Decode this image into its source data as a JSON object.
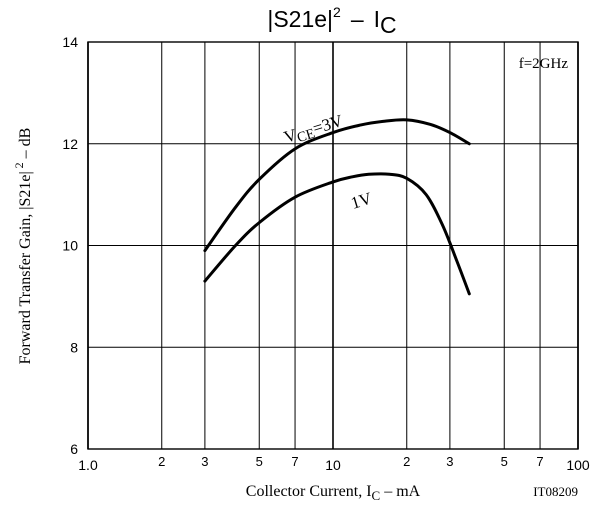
{
  "chart_data": {
    "type": "line",
    "title": "|S21e|² – IC",
    "title_parts": {
      "main": "S21e",
      "sup": "2",
      "dash": "–",
      "i": "I",
      "sub": "C"
    },
    "xlabel": "Collector Current, IC – mA",
    "xlabel_parts": {
      "pre": "Collector Current, I",
      "sub": "C",
      "post": " – mA"
    },
    "ylabel": "Forward Transfer Gain, |S21e|² – dB",
    "ylabel_parts": {
      "pre": "Forward Transfer Gain, ",
      "main": "S21e",
      "sup": "2",
      "post": " – dB"
    },
    "x_scale": "log",
    "xlim": [
      1,
      100
    ],
    "ylim": [
      6,
      14
    ],
    "grid": true,
    "annotations": {
      "condition": "f=2GHz",
      "code": "IT08209"
    },
    "x_major_ticks": [
      {
        "value": 1,
        "label": "1.0"
      },
      {
        "value": 10,
        "label": "10"
      },
      {
        "value": 100,
        "label": "100"
      }
    ],
    "x_minor_ticks": [
      {
        "value": 2,
        "label": "2"
      },
      {
        "value": 3,
        "label": "3"
      },
      {
        "value": 5,
        "label": "5"
      },
      {
        "value": 7,
        "label": "7"
      },
      {
        "value": 20,
        "label": "2"
      },
      {
        "value": 30,
        "label": "3"
      },
      {
        "value": 50,
        "label": "5"
      },
      {
        "value": 70,
        "label": "7"
      }
    ],
    "y_ticks": [
      {
        "value": 6,
        "label": "6"
      },
      {
        "value": 8,
        "label": "8"
      },
      {
        "value": 10,
        "label": "10"
      },
      {
        "value": 12,
        "label": "12"
      },
      {
        "value": 14,
        "label": "14"
      }
    ],
    "series": [
      {
        "name": "VCE=3V",
        "label_parts": {
          "v": "V",
          "sub": "CE",
          "rest": "=3V"
        },
        "x": [
          3,
          4,
          5,
          7,
          10,
          13,
          16,
          20,
          25,
          30,
          36
        ],
        "y": [
          9.9,
          10.75,
          11.3,
          11.9,
          12.22,
          12.37,
          12.44,
          12.47,
          12.38,
          12.22,
          12.0
        ]
      },
      {
        "name": "1V",
        "label_parts": {
          "v": "",
          "sub": "",
          "rest": "1V"
        },
        "x": [
          3,
          4,
          5,
          7,
          10,
          12,
          14,
          17,
          20,
          24,
          28,
          32,
          36
        ],
        "y": [
          9.3,
          10.0,
          10.45,
          10.95,
          11.25,
          11.35,
          11.4,
          11.4,
          11.32,
          11.0,
          10.4,
          9.7,
          9.05
        ]
      }
    ]
  }
}
